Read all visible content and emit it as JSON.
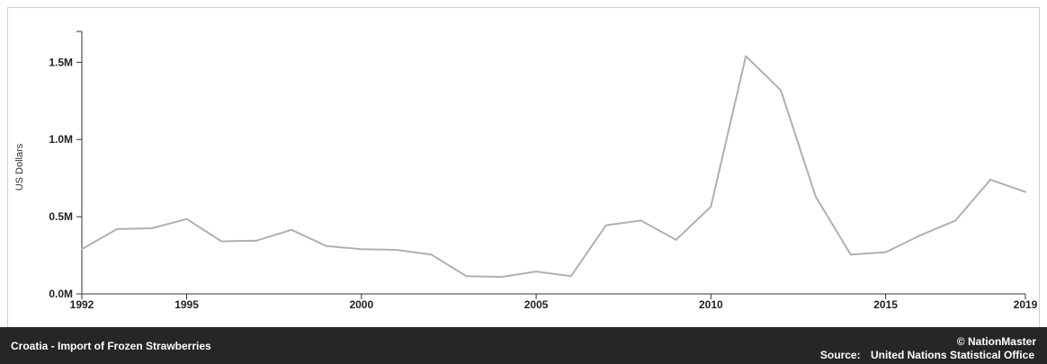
{
  "chart_data": {
    "type": "line",
    "title": "Croatia - Import of Frozen Strawberries",
    "ylabel": "US Dollars",
    "xlabel": "",
    "xlim": [
      1992,
      2019
    ],
    "ylim": [
      0,
      1700000
    ],
    "x_ticks": [
      1992,
      1995,
      2000,
      2005,
      2010,
      2015,
      2019
    ],
    "y_ticks": [
      {
        "value": 0,
        "label": "0.0M"
      },
      {
        "value": 500000,
        "label": "0.5M"
      },
      {
        "value": 1000000,
        "label": "1.0M"
      },
      {
        "value": 1500000,
        "label": "1.5M"
      }
    ],
    "grid": false,
    "line_color": "#b0b0b0",
    "series": [
      {
        "x": [
          1992,
          1993,
          1994,
          1995,
          1996,
          1997,
          1998,
          1999,
          2000,
          2001,
          2002,
          2003,
          2004,
          2005,
          2006,
          2007,
          2008,
          2009,
          2010,
          2011,
          2012,
          2013,
          2014,
          2015,
          2016,
          2017,
          2018,
          2019
        ],
        "values": [
          290000,
          420000,
          425000,
          485000,
          340000,
          345000,
          415000,
          310000,
          290000,
          285000,
          255000,
          115000,
          110000,
          145000,
          115000,
          445000,
          475000,
          350000,
          565000,
          1540000,
          1320000,
          630000,
          255000,
          270000,
          380000,
          475000,
          740000,
          660000
        ]
      }
    ]
  },
  "footer": {
    "title": "Croatia - Import of Frozen Strawberries",
    "brand": "© NationMaster",
    "source_label": "Source:",
    "source_value": "United Nations Statistical Office"
  }
}
